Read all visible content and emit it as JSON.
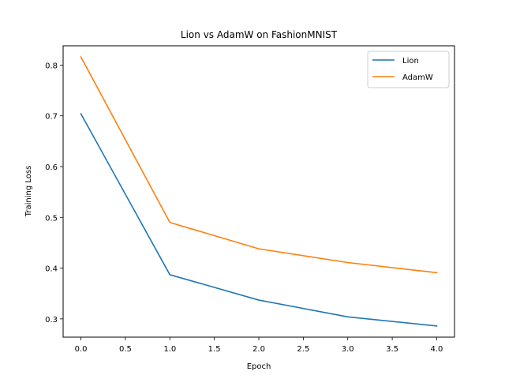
{
  "chart_data": {
    "type": "line",
    "title": "Lion vs AdamW on FashionMNIST",
    "xlabel": "Epoch",
    "ylabel": "Training Loss",
    "xlim": [
      -0.2,
      4.2
    ],
    "ylim": [
      0.264,
      0.838
    ],
    "x_ticks": [
      0.0,
      0.5,
      1.0,
      1.5,
      2.0,
      2.5,
      3.0,
      3.5,
      4.0
    ],
    "x_tick_labels": [
      "0.0",
      "0.5",
      "1.0",
      "1.5",
      "2.0",
      "2.5",
      "3.0",
      "3.5",
      "4.0"
    ],
    "y_ticks": [
      0.3,
      0.4,
      0.5,
      0.6,
      0.7,
      0.8
    ],
    "y_tick_labels": [
      "0.3",
      "0.4",
      "0.5",
      "0.6",
      "0.7",
      "0.8"
    ],
    "grid": false,
    "legend_position": "top-right",
    "x": [
      0,
      1,
      2,
      3,
      4
    ],
    "series": [
      {
        "name": "Lion",
        "color": "#1f77b4",
        "values": [
          0.704,
          0.387,
          0.337,
          0.304,
          0.286
        ]
      },
      {
        "name": "AdamW",
        "color": "#ff7f0e",
        "values": [
          0.816,
          0.49,
          0.438,
          0.411,
          0.391
        ]
      }
    ]
  }
}
